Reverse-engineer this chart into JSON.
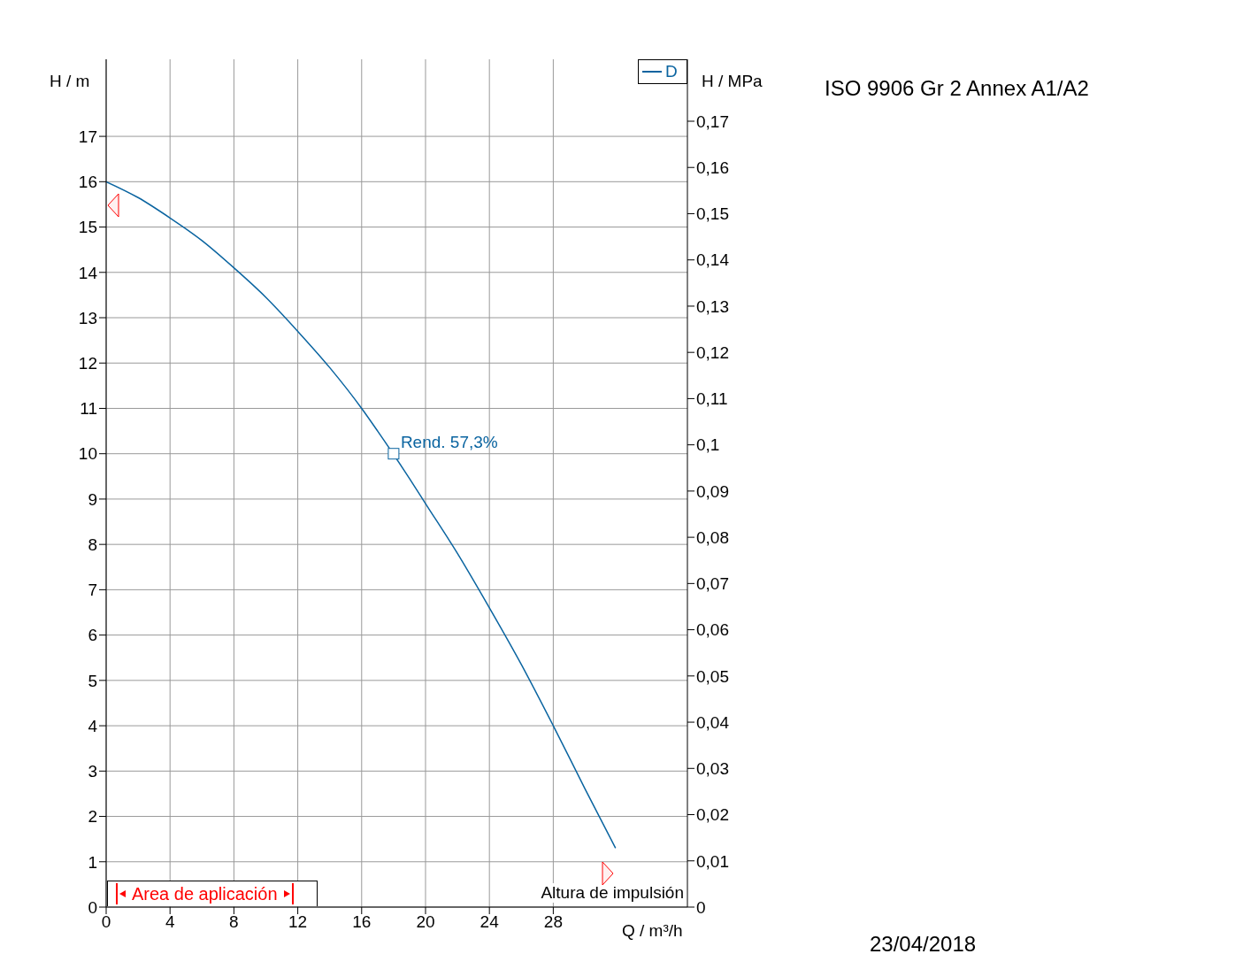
{
  "chart_data": {
    "type": "line",
    "title": "ISO 9906 Gr 2 Annex A1/A2",
    "xlabel": "Q / m³/h",
    "ylabel": "H / m",
    "y2label": "H / MPa",
    "x": [
      0,
      2,
      4,
      6,
      8,
      10,
      12,
      14,
      16,
      17,
      19,
      20,
      22,
      24,
      26,
      28,
      30,
      31.9
    ],
    "series": [
      {
        "name": "D",
        "color": "#0a64a0",
        "values": [
          16,
          15.65,
          15.2,
          14.7,
          14.1,
          13.45,
          12.7,
          11.9,
          11.0,
          10.5,
          9.45,
          8.9,
          7.8,
          6.6,
          5.35,
          4.0,
          2.6,
          1.3
        ]
      }
    ],
    "xlim": [
      0,
      36.4
    ],
    "xticks": [
      0,
      4,
      8,
      12,
      16,
      20,
      24,
      28
    ],
    "ylim": [
      0,
      18.7
    ],
    "yticks": [
      0,
      1,
      2,
      3,
      4,
      5,
      6,
      7,
      8,
      9,
      10,
      11,
      12,
      13,
      14,
      15,
      16,
      17
    ],
    "y2lim": [
      0,
      0.1834
    ],
    "y2ticks": [
      {
        "value": 0,
        "label": "0"
      },
      {
        "value": 0.01,
        "label": "0,01"
      },
      {
        "value": 0.02,
        "label": "0,02"
      },
      {
        "value": 0.03,
        "label": "0,03"
      },
      {
        "value": 0.04,
        "label": "0,04"
      },
      {
        "value": 0.05,
        "label": "0,05"
      },
      {
        "value": 0.06,
        "label": "0,06"
      },
      {
        "value": 0.07,
        "label": "0,07"
      },
      {
        "value": 0.08,
        "label": "0,08"
      },
      {
        "value": 0.09,
        "label": "0,09"
      },
      {
        "value": 0.1,
        "label": "0,1"
      },
      {
        "value": 0.11,
        "label": "0,11"
      },
      {
        "value": 0.12,
        "label": "0,12"
      },
      {
        "value": 0.13,
        "label": "0,13"
      },
      {
        "value": 0.14,
        "label": "0,14"
      },
      {
        "value": 0.15,
        "label": "0,15"
      },
      {
        "value": 0.16,
        "label": "0,16"
      },
      {
        "value": 0.17,
        "label": "0,17"
      }
    ],
    "grid": true,
    "legend": "top right",
    "marker": "none",
    "line_style": "solid",
    "annotations": [
      {
        "text": "Rend.  57,3%",
        "x": 18,
        "y": 10
      },
      "Area de aplicación",
      "Altura de impulsión",
      "23/04/2018"
    ]
  }
}
